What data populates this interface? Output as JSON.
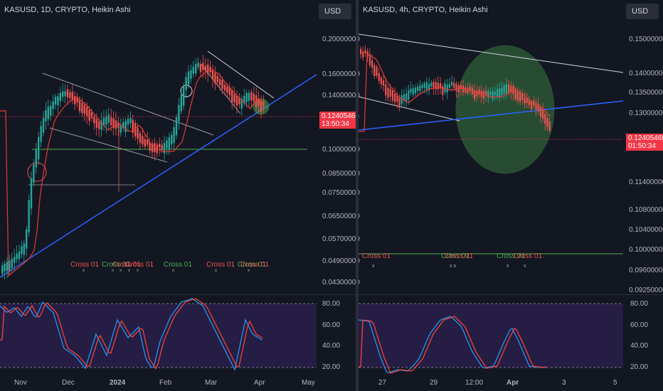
{
  "left": {
    "title": "KASUSD, 1D, CRYPTO, Heikin Ashi",
    "currency": "USD",
    "price_levels": [
      "0.20000000",
      "0.16000000",
      "0.14000000",
      "0.12405465",
      "0.10000000",
      "0.08500000",
      "0.07500000",
      "0.06500000",
      "0.05700000",
      "0.04900000",
      "0.04300000"
    ],
    "price_tag": {
      "price": "0.12405465",
      "countdown": "13:50:34"
    },
    "osc_levels": [
      "80.00",
      "60.00",
      "40.00",
      "20.00"
    ],
    "time_labels": [
      "Nov",
      "Dec",
      "2024",
      "Feb",
      "Mar",
      "Apr",
      "May"
    ],
    "cross_labels": [
      {
        "text": "Cross 01",
        "color": "#ef5350"
      },
      {
        "text": "Cross 01",
        "color": "#4caf50"
      },
      {
        "text": "Cross 01",
        "color": "#ef5350"
      },
      {
        "text": "Cross 01",
        "color": "#ef5350"
      },
      {
        "text": "Cross 01",
        "color": "#4caf50"
      },
      {
        "text": "Cross 01",
        "color": "#ef5350"
      },
      {
        "text": "Cross 01",
        "color": "#4caf50"
      },
      {
        "text": "Cross 01",
        "color": "#ef5350"
      }
    ]
  },
  "right": {
    "title": "KASUSD, 4h, CRYPTO, Heikin Ashi",
    "currency": "USD",
    "price_levels": [
      "0.15000000",
      "0.14000000",
      "0.13500000",
      "0.13000000",
      "0.12405465",
      "0.11400000",
      "0.10800000",
      "0.10400000",
      "0.10000000",
      "0.09600000",
      "0.09250000"
    ],
    "price_tag": {
      "price": "0.12405465",
      "countdown": "01:50:34"
    },
    "osc_levels": [
      "80.00",
      "60.00",
      "40.00",
      "20.00"
    ],
    "time_labels": [
      "27",
      "29",
      "12:00",
      "Apr",
      "3",
      "5"
    ],
    "cross_labels": [
      {
        "text": "Cross 01",
        "color": "#ef5350"
      },
      {
        "text": "Cross 01",
        "color": "#4caf50"
      },
      {
        "text": "Cross 01",
        "color": "#ef5350"
      },
      {
        "text": "Cross 01",
        "color": "#4caf50"
      },
      {
        "text": "Cross 01",
        "color": "#ef5350"
      }
    ]
  },
  "colors": {
    "up": "#26a69a",
    "down": "#ef5350",
    "trend": "#2962ff",
    "osc_bg": "#2a1e4a",
    "k_line": "#2196f3",
    "d_line": "#f44336"
  }
}
